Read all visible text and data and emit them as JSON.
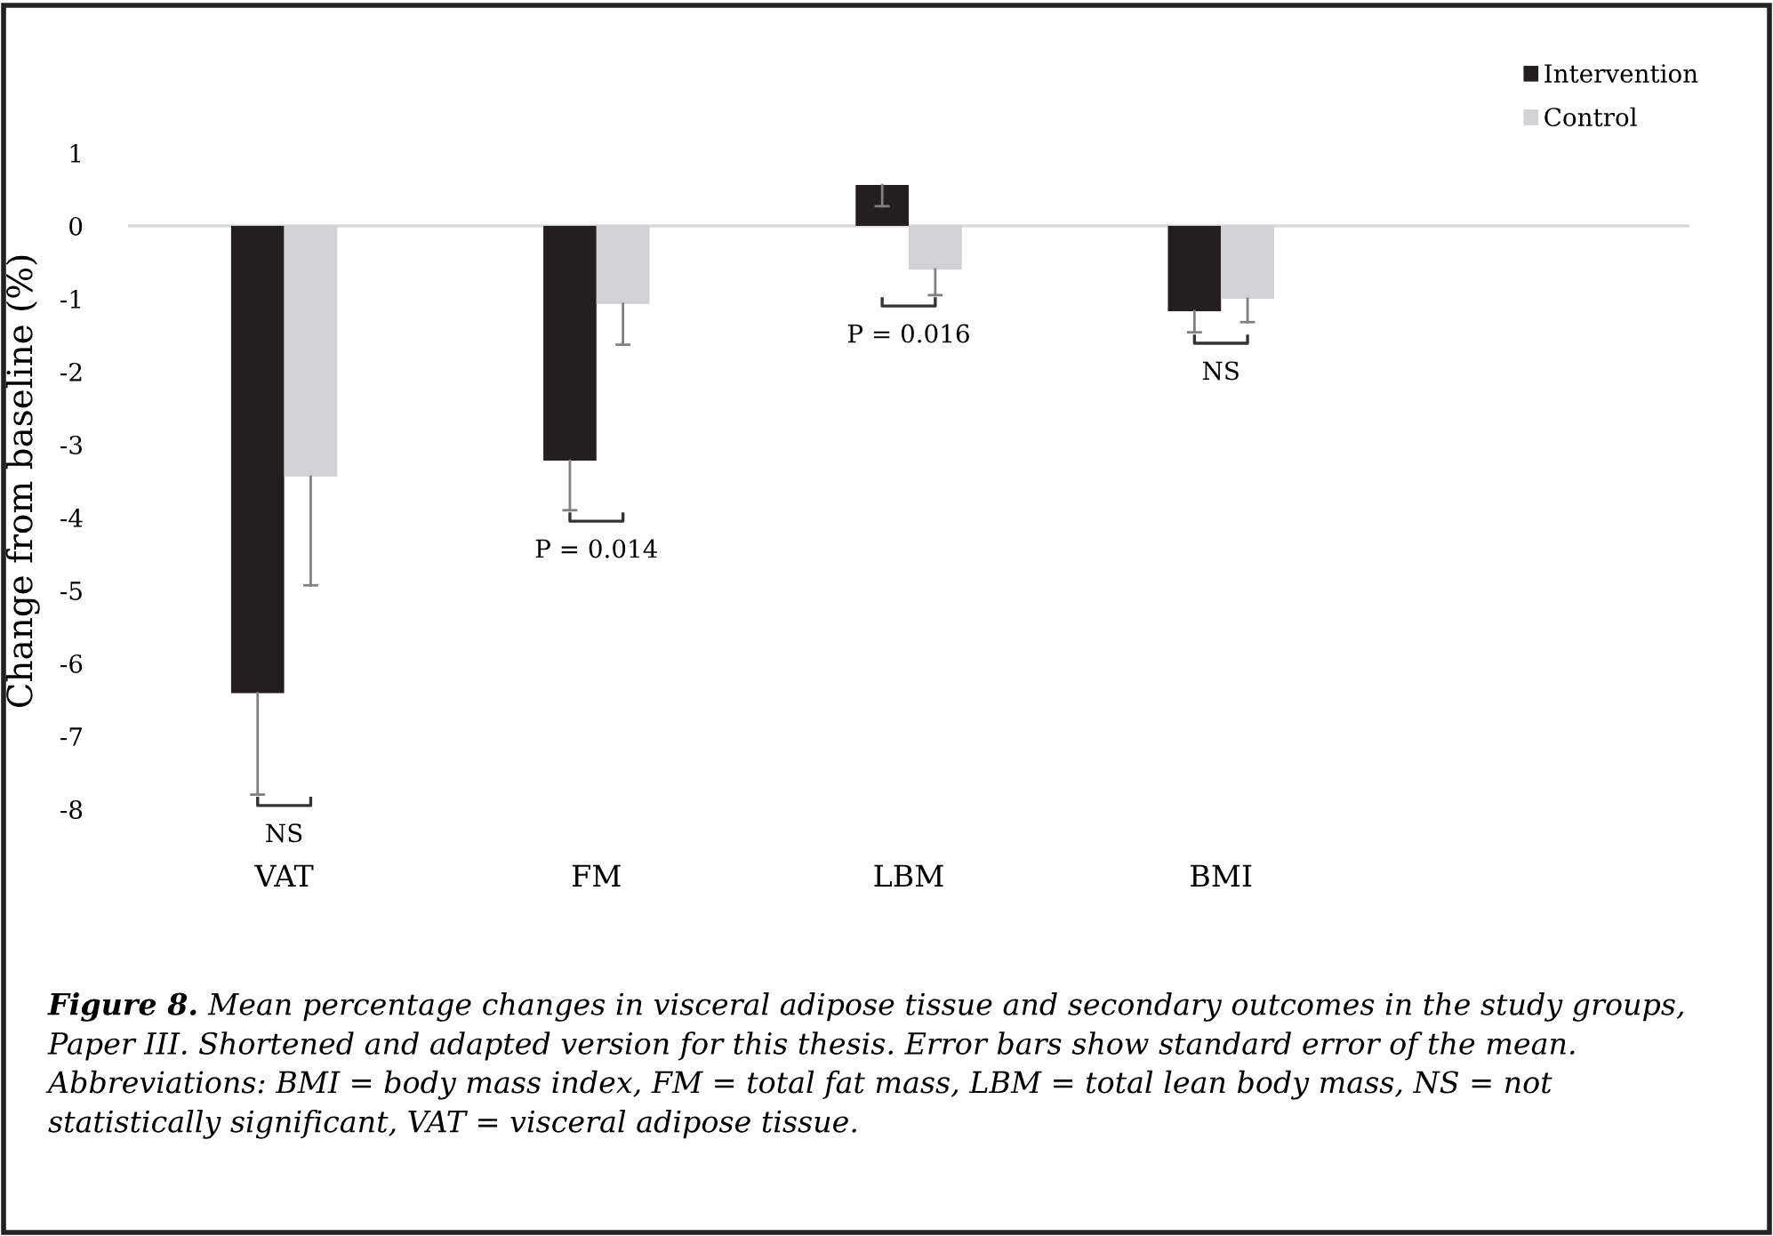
{
  "chart_data": {
    "type": "bar",
    "categories": [
      "VAT",
      "FM",
      "LBM",
      "BMI",
      null
    ],
    "ylabel": "Change from baseline (%)",
    "ylim": [
      -8,
      1
    ],
    "yticks": [
      1,
      0,
      -1,
      -2,
      -3,
      -4,
      -5,
      -6,
      -7,
      -8
    ],
    "grid": false,
    "legend": "top right",
    "ref_lines": [
      {
        "axis": "y",
        "value": 0,
        "color": "#d9d9d9"
      }
    ],
    "series": [
      {
        "name": "Intervention",
        "color": "#231f20",
        "values": [
          -6.41,
          -3.22,
          0.56,
          -1.17,
          null
        ],
        "errors": [
          [
            -7.8,
            -6.41
          ],
          [
            -3.9,
            -3.22
          ],
          [
            0.27,
            0.56
          ],
          [
            -1.46,
            -1.17
          ],
          null
        ]
      },
      {
        "name": "Control",
        "color": "#d1d2d4",
        "values": [
          -3.44,
          -1.07,
          -0.6,
          -1.0,
          null
        ],
        "errors": [
          [
            -4.93,
            -3.44
          ],
          [
            -1.63,
            -1.07
          ],
          [
            -0.95,
            -0.6
          ],
          [
            -1.32,
            -1.0
          ],
          null
        ]
      }
    ],
    "annotations": [
      "NS",
      "P = 0.014",
      "P = 0.016",
      "NS",
      "Figure 8.",
      "Mean percentage changes in visceral adipose tissue and secondary outcomes in the study groups, Paper III. Shortened and adapted version for this thesis. Error bars show standard error of the mean.  Abbreviations: BMI = body mass index, FM = total fat mass, LBM = total lean body mass, NS = not statistically significant, VAT = visceral adipose tissue."
    ]
  }
}
